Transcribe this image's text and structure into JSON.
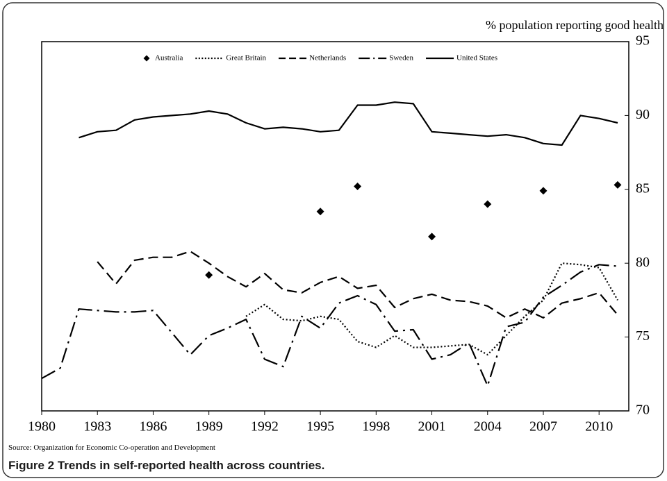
{
  "chart_data": {
    "type": "line",
    "y_axis_label": "% population reporting good health",
    "source": "Source: Organization for Economic Co-operation and Development",
    "caption": "Figure 2 Trends in self-reported health across countries.",
    "x": [
      1980,
      1981,
      1982,
      1983,
      1984,
      1985,
      1986,
      1987,
      1988,
      1989,
      1990,
      1991,
      1992,
      1993,
      1994,
      1995,
      1996,
      1997,
      1998,
      1999,
      2000,
      2001,
      2002,
      2003,
      2004,
      2005,
      2006,
      2007,
      2008,
      2009,
      2010,
      2011
    ],
    "xlim": [
      1980,
      2011.6
    ],
    "xticks": [
      1980,
      1983,
      1986,
      1989,
      1992,
      1995,
      1998,
      2001,
      2004,
      2007,
      2010
    ],
    "ylim": [
      70,
      95
    ],
    "yticks": [
      70,
      75,
      80,
      85,
      90,
      95
    ],
    "y_axis_side": "right",
    "series": [
      {
        "name": "Australia",
        "color": "#000000",
        "style": "markers",
        "values": [
          null,
          null,
          null,
          null,
          null,
          null,
          null,
          null,
          null,
          79.2,
          null,
          null,
          null,
          null,
          null,
          83.5,
          null,
          85.2,
          null,
          null,
          null,
          81.8,
          null,
          null,
          84.0,
          null,
          null,
          84.9,
          null,
          null,
          null,
          85.3
        ]
      },
      {
        "name": "Great Britain",
        "color": "#000000",
        "style": "dotted",
        "values": [
          null,
          null,
          null,
          null,
          null,
          null,
          null,
          null,
          null,
          null,
          null,
          76.4,
          77.2,
          76.2,
          76.1,
          76.4,
          76.2,
          74.7,
          74.3,
          75.1,
          74.3,
          74.3,
          74.4,
          74.5,
          73.8,
          75.1,
          76.4,
          77.5,
          80.0,
          79.9,
          79.7,
          77.5
        ]
      },
      {
        "name": "Netherlands",
        "color": "#000000",
        "style": "dashed",
        "values": [
          null,
          null,
          null,
          80.1,
          78.6,
          80.2,
          80.4,
          80.4,
          80.8,
          80.0,
          79.1,
          78.4,
          79.3,
          78.2,
          78.0,
          78.7,
          79.1,
          78.3,
          78.5,
          77.0,
          77.6,
          77.9,
          77.5,
          77.4,
          77.1,
          76.3,
          76.9,
          76.3,
          77.3,
          77.6,
          78.0,
          76.5
        ]
      },
      {
        "name": "Sweden",
        "color": "#000000",
        "style": "dash-dot",
        "values": [
          72.2,
          72.9,
          76.9,
          76.8,
          76.7,
          76.7,
          76.8,
          75.3,
          73.8,
          75.1,
          75.6,
          76.2,
          73.5,
          73.0,
          76.4,
          75.6,
          77.3,
          77.8,
          77.2,
          75.4,
          75.5,
          73.5,
          73.8,
          74.6,
          71.7,
          75.7,
          76.0,
          77.7,
          78.5,
          79.4,
          79.9,
          79.8
        ]
      },
      {
        "name": "United States",
        "color": "#000000",
        "style": "solid",
        "values": [
          null,
          null,
          88.5,
          88.9,
          89.0,
          89.7,
          89.9,
          90.0,
          90.1,
          90.3,
          90.1,
          89.5,
          89.1,
          89.2,
          89.1,
          88.9,
          89.0,
          90.7,
          90.7,
          90.9,
          90.8,
          88.9,
          88.8,
          88.7,
          88.6,
          88.7,
          88.5,
          88.1,
          88.0,
          90.0,
          89.8,
          89.5
        ]
      }
    ]
  }
}
